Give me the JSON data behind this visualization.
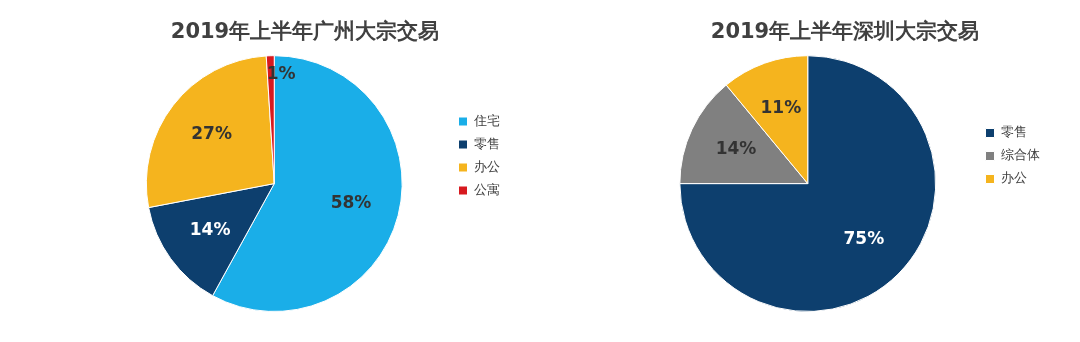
{
  "chart_data": [
    {
      "type": "pie",
      "title": "2019年上半年广州大宗交易",
      "categories": [
        "住宅",
        "零售",
        "办公",
        "公寓"
      ],
      "values": [
        58,
        14,
        27,
        1
      ],
      "colors": [
        "#1aaee8",
        "#0d3f6e",
        "#f5b41e",
        "#d7191f"
      ],
      "value_labels": [
        "58%",
        "14%",
        "27%",
        "1%"
      ],
      "legend": "right"
    },
    {
      "type": "pie",
      "title": "2019年上半年深圳大宗交易",
      "categories": [
        "零售",
        "综合体",
        "办公"
      ],
      "values": [
        75,
        14,
        11
      ],
      "colors": [
        "#0d3f6e",
        "#808080",
        "#f5b41e"
      ],
      "value_labels": [
        "75%",
        "14%",
        "11%"
      ],
      "legend": "right"
    }
  ]
}
